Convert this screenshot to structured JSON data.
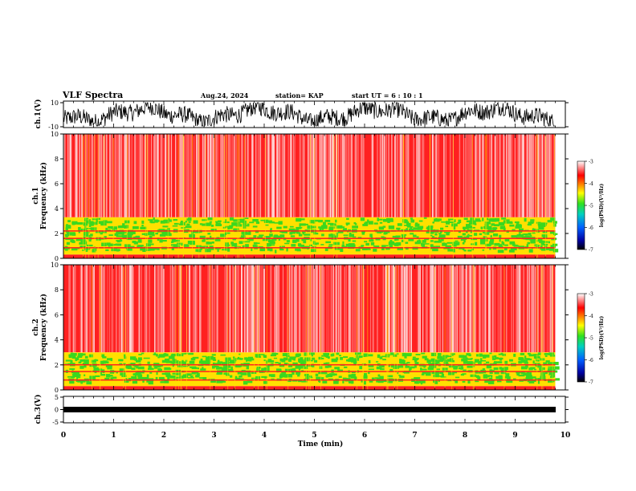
{
  "header": {
    "title": "VLF Spectra",
    "date": "Aug.24, 2024",
    "station": "station= KAP",
    "start": "start  UT =   6 : 10 : 1"
  },
  "chart_data": [
    {
      "type": "line",
      "name": "ch1-waveform",
      "ylabel": "ch.1(V)",
      "ylim": [
        -10,
        10
      ],
      "yticks": [
        "10",
        "-10"
      ],
      "xlim": [
        0,
        10
      ],
      "x_extent": 9.8,
      "note_visible": "dense noisy black waveform spanning roughly -8 to 8 V"
    },
    {
      "type": "heatmap",
      "name": "ch1-spectrogram",
      "ylabel": "ch.1",
      "ylabel2": "Frequency (kHz)",
      "ylim": [
        0,
        10
      ],
      "yticks": [
        "0",
        "2",
        "4",
        "6",
        "8",
        "10"
      ],
      "xlim": [
        0,
        10
      ],
      "x_extent": 9.8,
      "bands": [
        {
          "from": 0,
          "to": 0.3,
          "level": "red"
        },
        {
          "from": 0.3,
          "to": 3.3,
          "level": "green-yellow"
        },
        {
          "from": 3.3,
          "to": 10,
          "level": "red-white"
        }
      ],
      "colorbar": {
        "label": "log(PSD)(V²/Hz)",
        "range": [
          -7,
          -3
        ],
        "ticks": [
          "-3",
          "-4",
          "-5",
          "-6",
          "-7"
        ]
      }
    },
    {
      "type": "heatmap",
      "name": "ch2-spectrogram",
      "ylabel": "ch.2",
      "ylabel2": "Frequency (kHz)",
      "ylim": [
        0,
        10
      ],
      "yticks": [
        "0",
        "2",
        "4",
        "6",
        "8",
        "10"
      ],
      "xlim": [
        0,
        10
      ],
      "x_extent": 9.8,
      "bands": [
        {
          "from": 0,
          "to": 0.3,
          "level": "red"
        },
        {
          "from": 0.3,
          "to": 3.0,
          "level": "green-yellow"
        },
        {
          "from": 3.0,
          "to": 10,
          "level": "red-white"
        }
      ],
      "colorbar": {
        "label": "log(PSD)(V²/Hz)",
        "range": [
          -7,
          -3
        ],
        "ticks": [
          "-3",
          "-4",
          "-5",
          "-6",
          "-7"
        ]
      }
    },
    {
      "type": "line",
      "name": "ch3-waveform",
      "ylabel": "ch.3(V)",
      "ylim": [
        -5,
        5
      ],
      "yticks": [
        "5",
        "0",
        "-5"
      ],
      "xlim": [
        0,
        10
      ],
      "x_extent": 9.8,
      "note_visible": "thick flat black trace near -1 V"
    }
  ],
  "xaxis": {
    "label": "Time  (min)",
    "ticks": [
      "0",
      "1",
      "2",
      "3",
      "4",
      "5",
      "6",
      "7",
      "8",
      "9",
      "10"
    ]
  },
  "colors": {
    "waveform": "#000000",
    "red": "#ff2020",
    "yellow": "#ffe000",
    "green": "#3ad81e",
    "white": "#ffffff"
  }
}
